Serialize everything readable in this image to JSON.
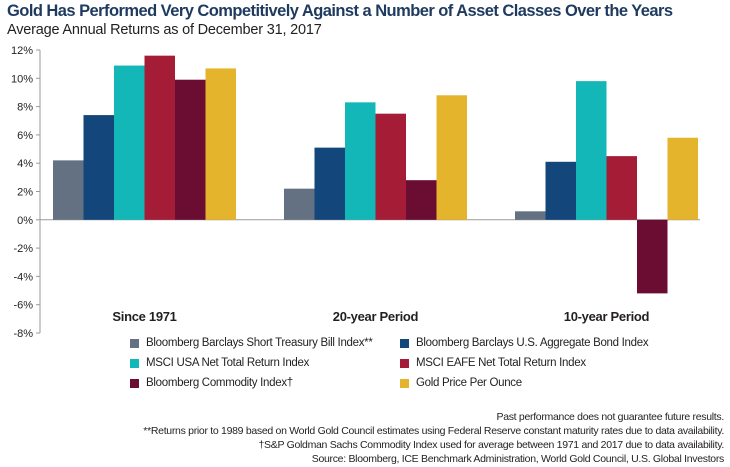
{
  "chart_data": {
    "type": "bar",
    "title": "Gold Has Performed Very Competitively Against a Number of Asset Classes Over the Years",
    "subtitle": "Average Annual Returns as of December 31, 2017",
    "xlabel": "",
    "ylabel": "",
    "ylim": [
      -8,
      12
    ],
    "yticks": [
      {
        "value": 12,
        "label": "12%"
      },
      {
        "value": 10,
        "label": "10%"
      },
      {
        "value": 8,
        "label": "8%"
      },
      {
        "value": 6,
        "label": "6%"
      },
      {
        "value": 4,
        "label": "4%"
      },
      {
        "value": 2,
        "label": "2%"
      },
      {
        "value": 0,
        "label": "0%"
      },
      {
        "value": -2,
        "label": "-2%"
      },
      {
        "value": -4,
        "label": "-4%"
      },
      {
        "value": -6,
        "label": "-6%"
      },
      {
        "value": -8,
        "label": "-8%"
      }
    ],
    "grid": false,
    "legend_position": "bottom",
    "categories": [
      "Since 1971",
      "20-year Period",
      "10-year Period"
    ],
    "series": [
      {
        "name": "Bloomberg Barclays Short Treasury Bill Index**",
        "color": "#637182",
        "values": [
          4.2,
          2.2,
          0.6
        ]
      },
      {
        "name": "Bloomberg Barclays U.S. Aggregate Bond Index",
        "color": "#13467a",
        "values": [
          7.4,
          5.1,
          4.1
        ]
      },
      {
        "name": "MSCI USA Net Total Return Index",
        "color": "#14b7b7",
        "values": [
          10.9,
          8.3,
          9.8
        ]
      },
      {
        "name": "MSCI EAFE Net Total Return Index",
        "color": "#a51c36",
        "values": [
          11.6,
          7.5,
          4.5
        ]
      },
      {
        "name": "Bloomberg Commodity Index†",
        "color": "#6b0d33",
        "values": [
          9.9,
          2.8,
          -5.2
        ]
      },
      {
        "name": "Gold Price Per Ounce",
        "color": "#e5b42d",
        "values": [
          10.7,
          8.8,
          5.8
        ]
      }
    ]
  },
  "footnotes": [
    "Past performance does not guarantee future results.",
    "**Returns prior to 1989 based on World Gold Council estimates using Federal Reserve constant maturity rates due to data availability.",
    "†S&P Goldman Sachs Commodity Index used for average between 1971 and 2017 due to data availability.",
    "Source: Bloomberg, ICE Benchmark Administration, World Gold Council, U.S. Global Investors"
  ]
}
